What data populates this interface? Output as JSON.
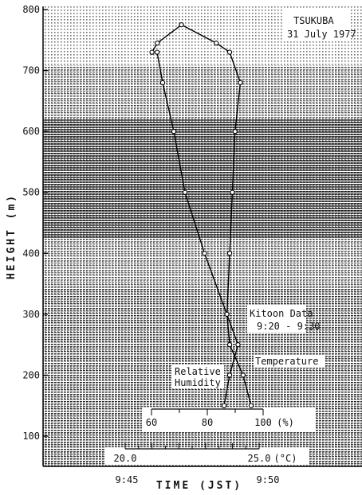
{
  "chart_data": {
    "type": "line",
    "title": "TSUKUBA",
    "subtitle": "31 July 1977",
    "ylabel": "HEIGHT (m)",
    "xlabel": "TIME (JST)",
    "ylim": [
      0,
      810
    ],
    "yticks": [
      100,
      200,
      300,
      400,
      500,
      600,
      700,
      800
    ],
    "time_ticks": [
      "9:45",
      "9:50"
    ],
    "annotation_lines": [
      "Kitoon Data",
      "9:20 - 9:30"
    ],
    "humidity_axis": {
      "ticks": [
        60,
        80,
        100
      ],
      "unit": "(%)",
      "range": [
        60,
        100
      ]
    },
    "temperature_axis": {
      "ticks": [
        "20.0",
        "25.0"
      ],
      "unit": "(°C)",
      "range": [
        20.0,
        25.0
      ]
    },
    "series": [
      {
        "name": "Temperature",
        "unit": "°C",
        "points": [
          {
            "value": 24.7,
            "height": 150
          },
          {
            "value": 24.4,
            "height": 200
          },
          {
            "value": 23.9,
            "height": 250
          },
          {
            "value": 23.8,
            "height": 300
          },
          {
            "value": 23.9,
            "height": 400
          },
          {
            "value": 24.0,
            "height": 500
          },
          {
            "value": 24.1,
            "height": 600
          },
          {
            "value": 24.3,
            "height": 680
          },
          {
            "value": 23.9,
            "height": 730
          },
          {
            "value": 23.4,
            "height": 745
          },
          {
            "value": 22.1,
            "height": 775
          },
          {
            "value": 21.2,
            "height": 745
          },
          {
            "value": 21.0,
            "height": 730
          }
        ]
      },
      {
        "name": "Relative Humidity",
        "unit": "%",
        "points": [
          {
            "value": 86,
            "height": 150
          },
          {
            "value": 88,
            "height": 200
          },
          {
            "value": 91,
            "height": 250
          },
          {
            "value": 87,
            "height": 300
          },
          {
            "value": 79,
            "height": 400
          },
          {
            "value": 72,
            "height": 500
          },
          {
            "value": 68,
            "height": 600
          },
          {
            "value": 64,
            "height": 680
          },
          {
            "value": 62,
            "height": 730
          }
        ]
      }
    ]
  }
}
